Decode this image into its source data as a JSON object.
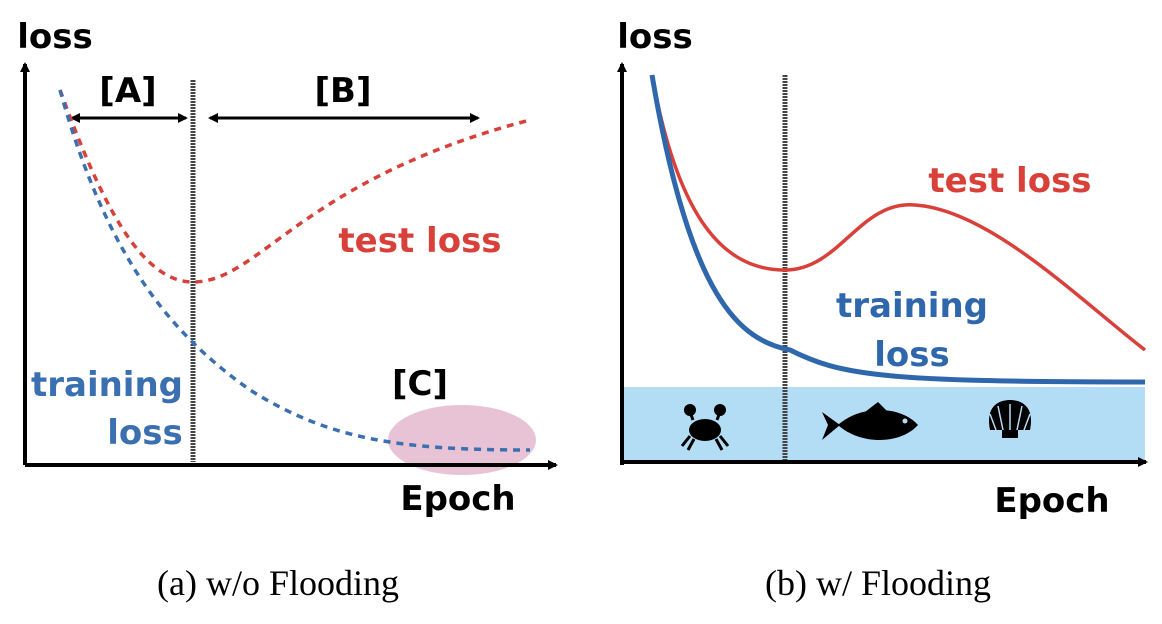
{
  "panel_a": {
    "y_axis_label": "loss",
    "x_axis_label": "Epoch",
    "annotations": [
      "[A]",
      "[B]",
      "[C]"
    ],
    "test_label": "test loss",
    "training_label": [
      "training",
      "loss"
    ],
    "caption": "(a) w/o Flooding"
  },
  "panel_b": {
    "y_axis_label": "loss",
    "x_axis_label": "Epoch",
    "test_label": "test loss",
    "training_label": [
      "training",
      "loss"
    ],
    "caption": "(b) w/ Flooding"
  }
}
